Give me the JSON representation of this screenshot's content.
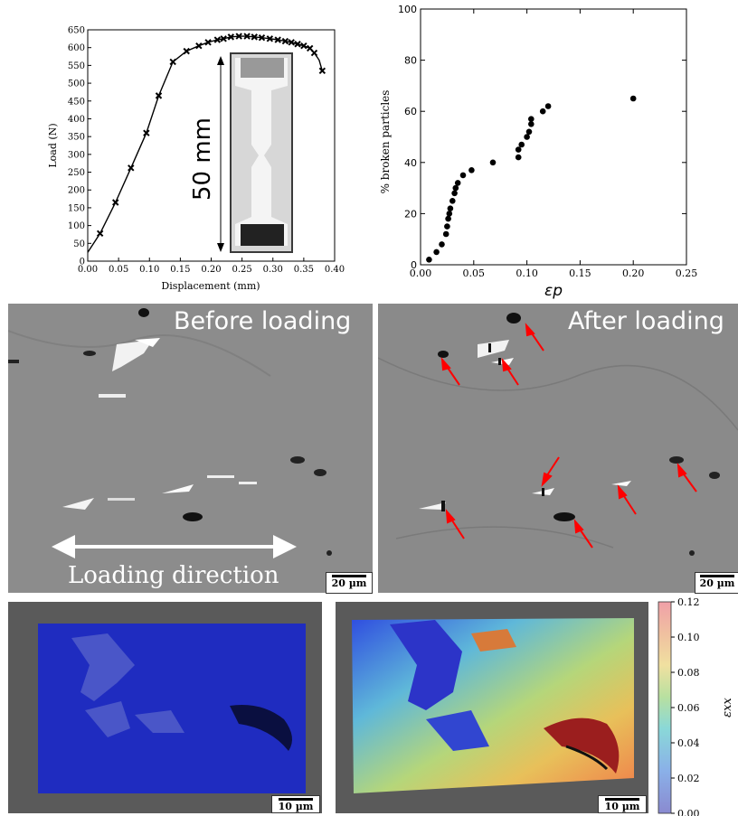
{
  "load_displacement": {
    "ylabel": "Load (N)",
    "xlabel": "Displacement (mm)",
    "y_ticks": [
      "0",
      "50",
      "100",
      "150",
      "200",
      "250",
      "300",
      "350",
      "400",
      "450",
      "500",
      "550",
      "600",
      "650"
    ],
    "x_ticks": [
      "0.00",
      "0.05",
      "0.10",
      "0.15",
      "0.20",
      "0.25",
      "0.30",
      "0.35",
      "0.40"
    ],
    "specimen_label": "50 mm"
  },
  "broken_particles": {
    "ylabel": "% broken particles",
    "xlabel": "εp",
    "y_ticks": [
      "0",
      "20",
      "40",
      "60",
      "80",
      "100"
    ],
    "x_ticks": [
      "0.00",
      "0.05",
      "0.10",
      "0.15",
      "0.20",
      "0.25"
    ]
  },
  "micrographs": {
    "before_label": "Before loading",
    "after_label": "After loading",
    "loading_direction": "Loading direction",
    "scale_before": "20 µm",
    "scale_after": "20 µm"
  },
  "strain_maps": {
    "scale_left": "10 µm",
    "scale_right": "10 µm",
    "colorbar_label": "εxx",
    "colorbar_ticks": [
      "0.12",
      "0.10",
      "0.08",
      "0.06",
      "0.04",
      "0.02",
      "0.00"
    ]
  },
  "colors": {
    "arrow_red": "#ff0000",
    "curve": "#000000",
    "micrograph_gray": "#8a8a8a",
    "map_blue": "#1d2bb8"
  },
  "chart_data": [
    {
      "type": "line",
      "x": [
        0.0,
        0.02,
        0.045,
        0.07,
        0.095,
        0.115,
        0.138,
        0.16,
        0.18,
        0.195,
        0.21,
        0.22,
        0.232,
        0.245,
        0.258,
        0.27,
        0.282,
        0.295,
        0.308,
        0.32,
        0.33,
        0.34,
        0.35,
        0.36,
        0.367,
        0.375,
        0.38
      ],
      "y": [
        25,
        78,
        165,
        262,
        360,
        465,
        560,
        590,
        605,
        615,
        622,
        625,
        630,
        632,
        632,
        630,
        628,
        625,
        622,
        618,
        615,
        610,
        605,
        598,
        585,
        565,
        535
      ],
      "markers_x": [
        0.02,
        0.045,
        0.07,
        0.095,
        0.115,
        0.138,
        0.16,
        0.18,
        0.195,
        0.21,
        0.22,
        0.232,
        0.245,
        0.258,
        0.27,
        0.282,
        0.295,
        0.308,
        0.32,
        0.33,
        0.34,
        0.35,
        0.36,
        0.367,
        0.38
      ],
      "xlabel": "Displacement (mm)",
      "ylabel": "Load (N)",
      "xlim": [
        0.0,
        0.4
      ],
      "ylim": [
        0,
        650
      ]
    },
    {
      "type": "scatter",
      "x": [
        0.008,
        0.015,
        0.02,
        0.024,
        0.025,
        0.026,
        0.027,
        0.028,
        0.03,
        0.032,
        0.033,
        0.035,
        0.04,
        0.048,
        0.068,
        0.092,
        0.092,
        0.095,
        0.1,
        0.102,
        0.104,
        0.104,
        0.115,
        0.12,
        0.2
      ],
      "y": [
        2,
        5,
        8,
        12,
        15,
        18,
        20,
        22,
        25,
        28,
        30,
        32,
        35,
        37,
        40,
        42,
        45,
        47,
        50,
        52,
        55,
        57,
        60,
        62,
        65
      ],
      "xlabel": "εp",
      "ylabel": "% broken particles",
      "xlim": [
        0.0,
        0.25
      ],
      "ylim": [
        0,
        100
      ]
    }
  ]
}
